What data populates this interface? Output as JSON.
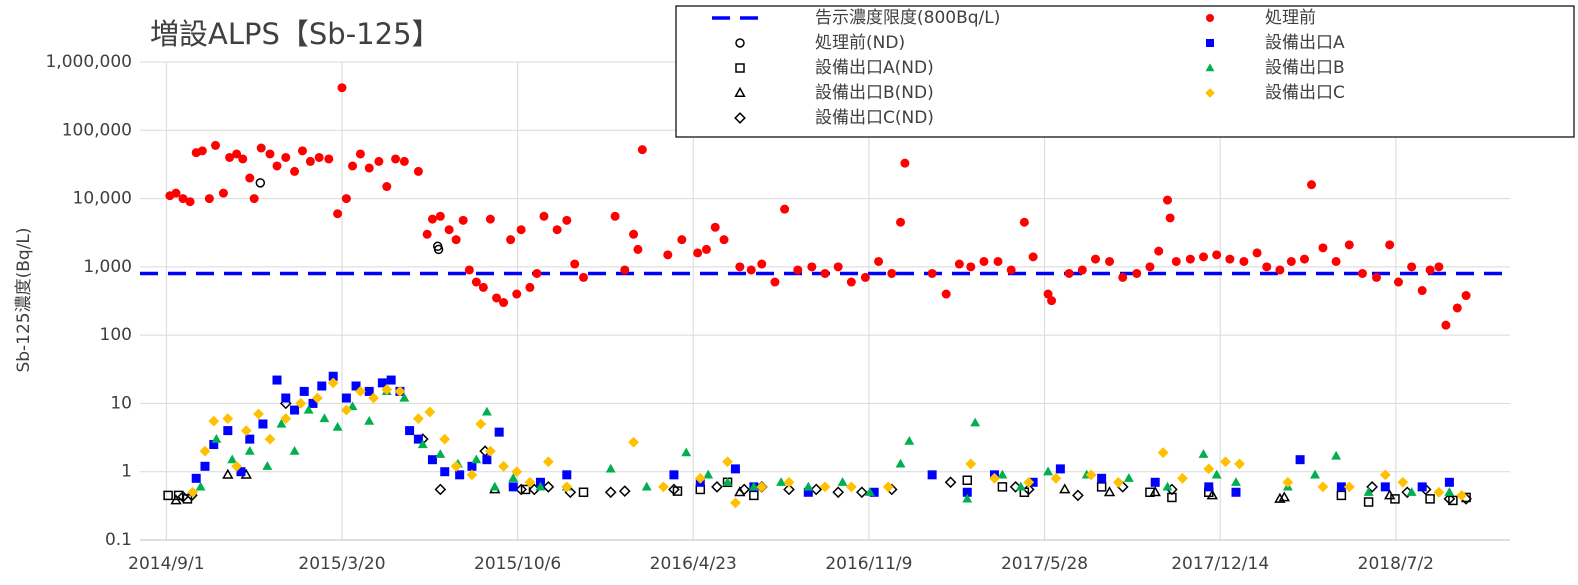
{
  "chart_data": {
    "type": "scatter",
    "title": "増設ALPS【Sb-125】",
    "y_label": "Sb-125濃度(Bq/L)",
    "log_y": true,
    "grid": true,
    "xlim": [
      "2014/8/2",
      "2018/11/9"
    ],
    "xticks": [
      "2014/9/1",
      "2015/3/20",
      "2015/10/6",
      "2016/4/23",
      "2016/11/9",
      "2017/5/28",
      "2017/12/14",
      "2018/7/2"
    ],
    "ylim": [
      0.1,
      1000000
    ],
    "yticks": [
      0.1,
      1,
      10,
      100,
      {
        "value": 1000,
        "label": "1,000"
      },
      {
        "value": 10000,
        "label": "10,000"
      },
      {
        "value": 100000,
        "label": "100,000"
      },
      {
        "value": 1000000,
        "label": "1,000,000"
      }
    ],
    "reference_line": {
      "name": "告示濃度限度(800Bq/L)",
      "color": "#0000ff",
      "value": 800
    },
    "series": [
      {
        "name": "処理前(ND)",
        "color": "#000000",
        "marker": "circle",
        "filled": false,
        "x": [
          "2014/12/17",
          "2015/7/7",
          "2015/7/8"
        ],
        "values": [
          17000,
          2000,
          1800
        ]
      },
      {
        "name": "設備出口A(ND)",
        "color": "#000000",
        "marker": "square",
        "filled": false,
        "x": [
          "2014/9/3",
          "2014/9/15",
          "2014/9/25",
          "2015/10/15",
          "2015/12/20",
          "2016/4/5",
          "2016/5/1",
          "2016/6/1",
          "2016/7/1",
          "2017/3/1",
          "2017/4/10",
          "2017/5/5",
          "2017/8/1",
          "2017/9/25",
          "2017/10/20",
          "2017/12/1",
          "2018/5/1",
          "2018/6/1",
          "2018/7/1",
          "2018/8/10",
          "2018/9/5",
          "2018/9/20"
        ],
        "values": [
          0.45,
          0.45,
          0.4,
          0.55,
          0.5,
          0.52,
          0.55,
          0.7,
          0.45,
          0.75,
          0.6,
          0.5,
          0.6,
          0.5,
          0.42,
          0.5,
          0.45,
          0.36,
          0.4,
          0.4,
          0.38,
          0.42
        ]
      },
      {
        "name": "設備出口B(ND)",
        "color": "#000000",
        "marker": "triangle",
        "filled": false,
        "x": [
          "2014/9/12",
          "2014/11/10",
          "2014/12/1",
          "2015/9/10",
          "2016/6/15",
          "2017/6/20",
          "2017/8/10",
          "2017/10/1",
          "2017/12/5",
          "2018/2/20",
          "2018/2/25",
          "2018/6/25"
        ],
        "values": [
          0.38,
          0.9,
          0.9,
          0.55,
          0.5,
          0.55,
          0.5,
          0.5,
          0.45,
          0.4,
          0.42,
          0.45
        ]
      },
      {
        "name": "設備出口C(ND)",
        "color": "#000000",
        "marker": "diamond",
        "filled": false,
        "x": [
          "2014/9/20",
          "2014/9/30",
          "2015/1/15",
          "2015/6/20",
          "2015/7/10",
          "2015/8/30",
          "2015/10/10",
          "2015/10/25",
          "2015/11/10",
          "2015/12/5",
          "2016/1/20",
          "2016/2/5",
          "2016/4/1",
          "2016/5/20",
          "2016/6/20",
          "2016/7/10",
          "2016/8/10",
          "2016/9/10",
          "2016/10/5",
          "2016/11/1",
          "2016/12/5",
          "2017/2/10",
          "2017/4/25",
          "2017/5/10",
          "2017/7/5",
          "2017/8/25",
          "2017/10/20",
          "2018/6/5",
          "2018/7/15",
          "2018/8/5",
          "2018/9/1",
          "2018/9/20"
        ],
        "values": [
          0.43,
          0.45,
          10,
          3,
          0.55,
          2,
          0.55,
          0.55,
          0.6,
          0.5,
          0.5,
          0.52,
          0.55,
          0.6,
          0.55,
          0.6,
          0.55,
          0.55,
          0.5,
          0.5,
          0.55,
          0.7,
          0.6,
          0.55,
          0.45,
          0.6,
          0.55,
          0.6,
          0.5,
          0.55,
          0.4,
          0.4
        ]
      },
      {
        "name": "処理前",
        "color": "#ff0000",
        "marker": "circle",
        "filled": true,
        "x": [
          "2014/9/5",
          "2014/9/12",
          "2014/9/20",
          "2014/9/28",
          "2014/10/5",
          "2014/10/12",
          "2014/10/20",
          "2014/10/27",
          "2014/11/5",
          "2014/11/12",
          "2014/11/20",
          "2014/11/27",
          "2014/12/5",
          "2014/12/10",
          "2014/12/18",
          "2014/12/28",
          "2015/1/5",
          "2015/1/15",
          "2015/1/25",
          "2015/2/3",
          "2015/2/12",
          "2015/2/22",
          "2015/3/5",
          "2015/3/15",
          "2015/3/20",
          "2015/3/25",
          "2015/4/1",
          "2015/4/10",
          "2015/4/20",
          "2015/5/1",
          "2015/5/10",
          "2015/5/20",
          "2015/5/30",
          "2015/6/15",
          "2015/6/25",
          "2015/7/1",
          "2015/7/10",
          "2015/7/20",
          "2015/7/28",
          "2015/8/5",
          "2015/8/12",
          "2015/8/20",
          "2015/8/28",
          "2015/9/5",
          "2015/9/12",
          "2015/9/20",
          "2015/9/28",
          "2015/10/5",
          "2015/10/10",
          "2015/10/20",
          "2015/10/28",
          "2015/11/5",
          "2015/11/20",
          "2015/12/1",
          "2015/12/10",
          "2015/12/20",
          "2016/1/25",
          "2016/2/5",
          "2016/2/15",
          "2016/2/20",
          "2016/2/25",
          "2016/3/25",
          "2016/4/10",
          "2016/4/28",
          "2016/5/8",
          "2016/5/18",
          "2016/5/28",
          "2016/6/15",
          "2016/6/28",
          "2016/7/10",
          "2016/7/25",
          "2016/8/5",
          "2016/8/20",
          "2016/9/5",
          "2016/9/20",
          "2016/10/5",
          "2016/10/20",
          "2016/11/5",
          "2016/11/20",
          "2016/12/5",
          "2016/12/15",
          "2016/12/20",
          "2017/1/20",
          "2017/2/5",
          "2017/2/20",
          "2017/3/5",
          "2017/3/20",
          "2017/4/5",
          "2017/4/20",
          "2017/5/5",
          "2017/5/15",
          "2017/6/1",
          "2017/6/5",
          "2017/6/25",
          "2017/7/10",
          "2017/7/25",
          "2017/8/10",
          "2017/8/25",
          "2017/9/10",
          "2017/9/25",
          "2017/10/5",
          "2017/10/15",
          "2017/10/18",
          "2017/10/25",
          "2017/11/10",
          "2017/11/25",
          "2017/12/10",
          "2017/12/25",
          "2018/1/10",
          "2018/1/25",
          "2018/2/5",
          "2018/2/20",
          "2018/3/5",
          "2018/3/20",
          "2018/3/28",
          "2018/4/10",
          "2018/4/25",
          "2018/5/10",
          "2018/5/25",
          "2018/6/10",
          "2018/6/25",
          "2018/7/5",
          "2018/7/20",
          "2018/8/1",
          "2018/8/10",
          "2018/8/20",
          "2018/8/28",
          "2018/9/10",
          "2018/9/20"
        ],
        "values": [
          11000,
          12000,
          10000,
          9000,
          47000,
          50000,
          10000,
          60000,
          12000,
          40000,
          45000,
          38000,
          20000,
          10000,
          55000,
          45000,
          30000,
          40000,
          25000,
          50000,
          35000,
          40000,
          38000,
          6000,
          420000,
          10000,
          30000,
          45000,
          28000,
          35000,
          15000,
          38000,
          35000,
          25000,
          3000,
          5000,
          5500,
          3500,
          2500,
          4800,
          900,
          600,
          500,
          5000,
          350,
          300,
          2500,
          400,
          3500,
          500,
          800,
          5500,
          3500,
          4800,
          1100,
          700,
          5500,
          900,
          3000,
          1800,
          52000,
          1500,
          2500,
          1600,
          1800,
          3800,
          2500,
          1000,
          900,
          1100,
          600,
          7000,
          900,
          1000,
          800,
          1000,
          600,
          700,
          1200,
          800,
          4500,
          33000,
          800,
          400,
          1100,
          1000,
          1200,
          1200,
          900,
          4500,
          1400,
          400,
          320,
          800,
          900,
          1300,
          1200,
          700,
          800,
          1000,
          1700,
          9500,
          5200,
          1200,
          1300,
          1400,
          1500,
          1300,
          1200,
          1600,
          1000,
          900,
          1200,
          1300,
          16000,
          1900,
          1200,
          2100,
          800,
          700,
          2100,
          600,
          1000,
          450,
          900,
          1000,
          140,
          250,
          380
        ]
      },
      {
        "name": "設備出口A",
        "color": "#0000ff",
        "marker": "square",
        "filled": true,
        "x": [
          "2014/10/5",
          "2014/10/15",
          "2014/10/25",
          "2014/11/10",
          "2014/11/25",
          "2014/12/5",
          "2014/12/20",
          "2015/1/5",
          "2015/1/15",
          "2015/1/25",
          "2015/2/5",
          "2015/2/15",
          "2015/2/25",
          "2015/3/10",
          "2015/3/25",
          "2015/4/5",
          "2015/4/20",
          "2015/5/5",
          "2015/5/15",
          "2015/5/25",
          "2015/6/5",
          "2015/6/15",
          "2015/7/1",
          "2015/7/15",
          "2015/8/1",
          "2015/8/15",
          "2015/9/1",
          "2015/9/15",
          "2015/10/1",
          "2015/11/1",
          "2015/12/1",
          "2016/4/1",
          "2016/5/1",
          "2016/6/10",
          "2016/7/1",
          "2016/9/1",
          "2016/11/15",
          "2017/1/20",
          "2017/3/1",
          "2017/4/1",
          "2017/5/15",
          "2017/6/15",
          "2017/8/1",
          "2017/10/1",
          "2017/12/1",
          "2018/1/1",
          "2018/3/15",
          "2018/5/1",
          "2018/6/20",
          "2018/8/1",
          "2018/9/1"
        ],
        "values": [
          0.8,
          1.2,
          2.5,
          4,
          1.0,
          3,
          5,
          22,
          12,
          8,
          15,
          10,
          18,
          25,
          12,
          18,
          15,
          20,
          22,
          15,
          4,
          3,
          1.5,
          1.0,
          0.9,
          1.2,
          1.5,
          3.8,
          0.6,
          0.7,
          0.9,
          0.9,
          0.7,
          1.1,
          0.6,
          0.5,
          0.5,
          0.9,
          0.5,
          0.9,
          0.7,
          1.1,
          0.8,
          0.7,
          0.6,
          0.5,
          1.5,
          0.6,
          0.6,
          0.6,
          0.7
        ]
      },
      {
        "name": "設備出口B",
        "color": "#00b050",
        "marker": "triangle",
        "filled": true,
        "x": [
          "2014/10/10",
          "2014/10/28",
          "2014/11/15",
          "2014/12/5",
          "2014/12/25",
          "2015/1/10",
          "2015/1/25",
          "2015/2/10",
          "2015/2/28",
          "2015/3/15",
          "2015/4/1",
          "2015/4/20",
          "2015/5/10",
          "2015/5/30",
          "2015/6/20",
          "2015/7/10",
          "2015/7/30",
          "2015/8/20",
          "2015/9/1",
          "2015/9/10",
          "2015/10/1",
          "2015/11/1",
          "2015/12/1",
          "2016/1/20",
          "2016/3/1",
          "2016/4/15",
          "2016/5/10",
          "2016/6/1",
          "2016/7/1",
          "2016/8/1",
          "2016/9/1",
          "2016/10/10",
          "2016/11/10",
          "2016/12/15",
          "2016/12/25",
          "2017/3/10",
          "2017/3/1",
          "2017/4/10",
          "2017/5/1",
          "2017/6/1",
          "2017/7/15",
          "2017/9/1",
          "2017/10/15",
          "2017/11/25",
          "2017/12/10",
          "2018/1/1",
          "2018/3/1",
          "2018/4/1",
          "2018/4/25",
          "2018/6/1",
          "2018/7/20",
          "2018/9/1"
        ],
        "values": [
          0.6,
          3,
          1.5,
          2,
          1.2,
          5,
          2,
          8,
          6,
          4.5,
          9,
          5.5,
          15,
          12,
          2.5,
          1.8,
          1.3,
          1.5,
          7.5,
          0.6,
          0.8,
          0.6,
          0.6,
          1.1,
          0.6,
          1.9,
          0.9,
          0.7,
          0.6,
          0.7,
          0.6,
          0.7,
          0.5,
          1.3,
          2.8,
          5.2,
          0.4,
          0.9,
          0.6,
          1.0,
          0.9,
          0.8,
          0.6,
          1.8,
          0.9,
          0.7,
          0.6,
          0.9,
          1.7,
          0.5,
          0.5,
          0.5
        ]
      },
      {
        "name": "設備出口C",
        "color": "#ffc000",
        "marker": "diamond",
        "filled": true,
        "x": [
          "2014/10/1",
          "2014/10/15",
          "2014/10/25",
          "2014/11/10",
          "2014/11/20",
          "2014/12/1",
          "2014/12/15",
          "2014/12/28",
          "2015/1/15",
          "2015/2/1",
          "2015/2/20",
          "2015/3/10",
          "2015/3/25",
          "2015/4/10",
          "2015/4/25",
          "2015/5/10",
          "2015/5/25",
          "2015/6/15",
          "2015/6/28",
          "2015/7/15",
          "2015/7/28",
          "2015/8/15",
          "2015/8/25",
          "2015/9/5",
          "2015/9/20",
          "2015/10/5",
          "2015/10/20",
          "2015/11/10",
          "2015/12/1",
          "2016/2/15",
          "2016/3/20",
          "2016/5/1",
          "2016/6/1",
          "2016/6/10",
          "2016/7/10",
          "2016/8/10",
          "2016/9/20",
          "2016/10/20",
          "2016/12/1",
          "2017/3/5",
          "2017/4/1",
          "2017/5/10",
          "2017/6/10",
          "2017/7/20",
          "2017/8/20",
          "2017/10/10",
          "2017/11/1",
          "2017/12/1",
          "2017/12/20",
          "2018/1/5",
          "2018/3/1",
          "2018/4/10",
          "2018/5/10",
          "2018/6/20",
          "2018/7/10",
          "2018/8/20",
          "2018/9/15"
        ],
        "values": [
          0.5,
          2,
          5.5,
          6,
          1.2,
          4,
          7,
          3,
          6,
          10,
          12,
          20,
          8,
          15,
          12,
          16,
          15,
          6,
          7.5,
          3,
          1.2,
          0.9,
          5,
          2,
          1.2,
          1,
          0.7,
          1.4,
          0.6,
          2.7,
          0.6,
          0.8,
          1.4,
          0.35,
          0.6,
          0.7,
          0.6,
          0.6,
          0.6,
          1.3,
          0.8,
          0.7,
          0.8,
          0.9,
          0.7,
          1.9,
          0.8,
          1.1,
          1.4,
          1.3,
          0.7,
          0.6,
          0.6,
          0.9,
          0.7,
          0.5,
          0.45
        ]
      }
    ]
  }
}
